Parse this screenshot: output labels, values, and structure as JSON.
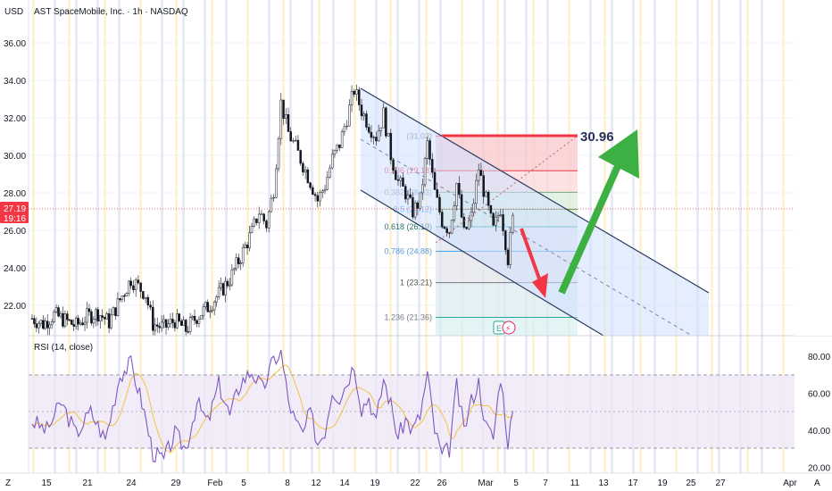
{
  "header": {
    "currency": "USD",
    "title": "AST SpaceMobile, Inc. · 1h · NASDAQ"
  },
  "price_badge": {
    "price": "27.19",
    "countdown": "19:16"
  },
  "price_axis": {
    "ticks": [
      "36.00",
      "34.00",
      "32.00",
      "30.00",
      "28.00",
      "26.00",
      "24.00",
      "22.00"
    ]
  },
  "time_axis": {
    "labels": [
      "15",
      "21",
      "24",
      "29",
      "Feb",
      "5",
      "8",
      "12",
      "14",
      "19",
      "22",
      "26",
      "Mar",
      "5",
      "7",
      "11",
      "13",
      "17",
      "19",
      "25",
      "27",
      "Apr"
    ],
    "corner_left": "Z",
    "corner_right": "A"
  },
  "fib": {
    "levels": [
      {
        "label": "(31.03)",
        "ratio": "",
        "price": 31.03
      },
      {
        "label": "0.236 (29.18)",
        "ratio": "0.236",
        "price": 29.18
      },
      {
        "label": "0.382 (28.03)",
        "ratio": "0.382",
        "price": 28.03
      },
      {
        "label": "0.5 (27.12)",
        "ratio": "0.5",
        "price": 27.12
      },
      {
        "label": "0.618 (26.19)",
        "ratio": "0.618",
        "price": 26.19
      },
      {
        "label": "0.786 (24.88)",
        "ratio": "0.786",
        "price": 24.88
      },
      {
        "label": "1 (23.21)",
        "ratio": "1",
        "price": 23.21
      },
      {
        "label": "1.236 (21.36)",
        "ratio": "1.236",
        "price": 21.36
      }
    ]
  },
  "target": {
    "label": "30.96",
    "price": 30.96
  },
  "event_icons": {
    "earnings": "E",
    "flash": "⚡"
  },
  "rsi": {
    "title": "RSI (14, close)",
    "ticks": [
      "80.00",
      "60.00",
      "40.00",
      "20.00"
    ],
    "upper_band": 70,
    "lower_band": 30,
    "mid": 50
  },
  "colors": {
    "candle": "#131722",
    "channel_fill": "#cfe0ff",
    "channel_line": "#2a3a5e",
    "target_line": "#f23645",
    "arrow_down": "#f23645",
    "arrow_up": "#3cb043",
    "rsi_line": "#7e57c2",
    "rsi_ma": "#f5c242",
    "price_badge": "#f23645"
  },
  "chart_data": {
    "type": "candlestick-with-rsi",
    "title": "AST SpaceMobile, Inc. · 1h · NASDAQ",
    "ylim": [
      20.5,
      37
    ],
    "rsi_ylim": [
      18,
      90
    ],
    "price_path": [
      [
        0,
        21.3
      ],
      [
        3,
        21.0
      ],
      [
        6,
        21.5
      ],
      [
        9,
        21.2
      ],
      [
        12,
        20.9
      ],
      [
        15,
        21.4
      ],
      [
        18,
        21.6
      ],
      [
        21,
        21.1
      ],
      [
        24,
        22.3
      ],
      [
        27,
        23.4
      ],
      [
        29,
        23.0
      ],
      [
        31,
        22.6
      ],
      [
        33,
        21.0
      ],
      [
        36,
        20.8
      ],
      [
        39,
        21.2
      ],
      [
        42,
        20.7
      ],
      [
        45,
        21.4
      ],
      [
        48,
        21.9
      ],
      [
        51,
        22.6
      ],
      [
        54,
        23.4
      ],
      [
        57,
        24.6
      ],
      [
        60,
        25.9
      ],
      [
        62,
        27.0
      ],
      [
        64,
        26.3
      ],
      [
        66,
        28.2
      ],
      [
        68,
        32.8
      ],
      [
        70,
        31.2
      ],
      [
        72,
        30.4
      ],
      [
        74,
        29.5
      ],
      [
        76,
        28.6
      ],
      [
        78,
        27.6
      ],
      [
        80,
        28.4
      ],
      [
        82,
        29.8
      ],
      [
        84,
        30.6
      ],
      [
        86,
        32.0
      ],
      [
        88,
        33.5
      ],
      [
        90,
        32.4
      ],
      [
        92,
        31.6
      ],
      [
        94,
        31.0
      ],
      [
        96,
        32.2
      ],
      [
        98,
        30.0
      ],
      [
        100,
        28.6
      ],
      [
        102,
        28.0
      ],
      [
        104,
        27.0
      ],
      [
        106,
        27.6
      ],
      [
        108,
        30.6
      ],
      [
        110,
        28.0
      ],
      [
        112,
        26.5
      ],
      [
        114,
        26.0
      ],
      [
        116,
        28.5
      ],
      [
        118,
        25.8
      ],
      [
        120,
        26.7
      ],
      [
        122,
        29.3
      ],
      [
        124,
        27.6
      ],
      [
        126,
        26.0
      ],
      [
        128,
        27.2
      ],
      [
        130,
        24.5
      ],
      [
        132,
        27.6
      ]
    ],
    "rsi_path": [
      [
        0,
        45
      ],
      [
        4,
        40
      ],
      [
        8,
        55
      ],
      [
        12,
        38
      ],
      [
        16,
        50
      ],
      [
        20,
        35
      ],
      [
        24,
        70
      ],
      [
        27,
        76
      ],
      [
        30,
        55
      ],
      [
        33,
        28
      ],
      [
        36,
        24
      ],
      [
        39,
        38
      ],
      [
        42,
        30
      ],
      [
        45,
        55
      ],
      [
        48,
        44
      ],
      [
        51,
        65
      ],
      [
        54,
        48
      ],
      [
        57,
        66
      ],
      [
        60,
        72
      ],
      [
        63,
        62
      ],
      [
        66,
        78
      ],
      [
        68,
        82
      ],
      [
        70,
        56
      ],
      [
        72,
        44
      ],
      [
        74,
        38
      ],
      [
        76,
        50
      ],
      [
        78,
        33
      ],
      [
        80,
        40
      ],
      [
        82,
        62
      ],
      [
        84,
        58
      ],
      [
        86,
        66
      ],
      [
        88,
        76
      ],
      [
        90,
        52
      ],
      [
        92,
        58
      ],
      [
        94,
        44
      ],
      [
        96,
        68
      ],
      [
        98,
        54
      ],
      [
        100,
        36
      ],
      [
        102,
        46
      ],
      [
        104,
        40
      ],
      [
        106,
        48
      ],
      [
        108,
        70
      ],
      [
        110,
        40
      ],
      [
        112,
        26
      ],
      [
        114,
        30
      ],
      [
        116,
        64
      ],
      [
        118,
        40
      ],
      [
        120,
        56
      ],
      [
        122,
        66
      ],
      [
        124,
        42
      ],
      [
        126,
        36
      ],
      [
        128,
        70
      ],
      [
        130,
        34
      ],
      [
        132,
        57
      ]
    ]
  }
}
